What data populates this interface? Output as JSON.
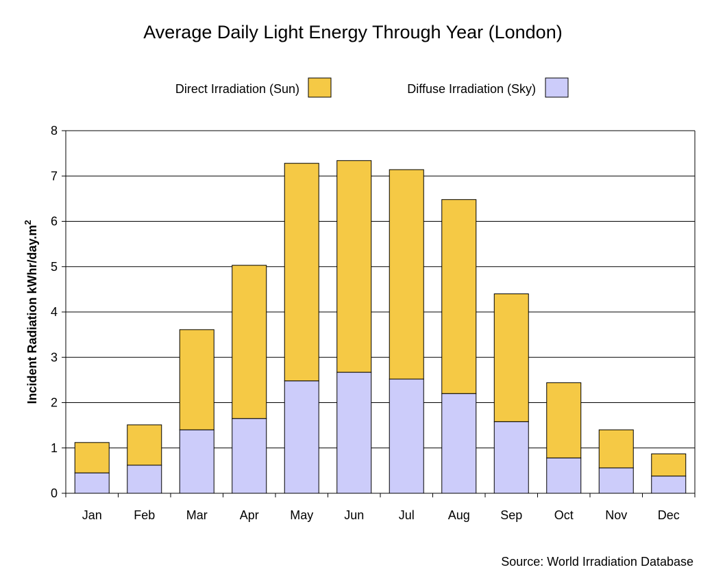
{
  "chart_data": {
    "type": "bar",
    "stacked": true,
    "title": "Average Daily Light Energy Through Year (London)",
    "ylabel_main": "Incident Radiation kWhr/day.m",
    "ylabel_sup": "2",
    "xlabel": "",
    "ylim": [
      0,
      8
    ],
    "yticks": [
      "0",
      "1",
      "2",
      "3",
      "4",
      "5",
      "6",
      "7",
      "8"
    ],
    "grid": true,
    "legend_position": "top",
    "categories": [
      "Jan",
      "Feb",
      "Mar",
      "Apr",
      "May",
      "Jun",
      "Jul",
      "Aug",
      "Sep",
      "Oct",
      "Nov",
      "Dec"
    ],
    "series": [
      {
        "name": "Diffuse Irradiation (Sky)",
        "color": "#ccccfa",
        "values": [
          0.45,
          0.62,
          1.4,
          1.65,
          2.48,
          2.67,
          2.52,
          2.2,
          1.58,
          0.78,
          0.56,
          0.38
        ]
      },
      {
        "name": "Direct Irradiation (Sun)",
        "color": "#f5c945",
        "values": [
          0.67,
          0.89,
          2.21,
          3.38,
          4.8,
          4.67,
          4.62,
          4.28,
          2.82,
          1.66,
          0.84,
          0.49
        ]
      }
    ],
    "legend": [
      {
        "label": "Direct Irradiation (Sun)",
        "color": "#f5c945"
      },
      {
        "label": "Diffuse Irradiation (Sky)",
        "color": "#ccccfa"
      }
    ],
    "source": "Source: World Irradiation Database"
  }
}
